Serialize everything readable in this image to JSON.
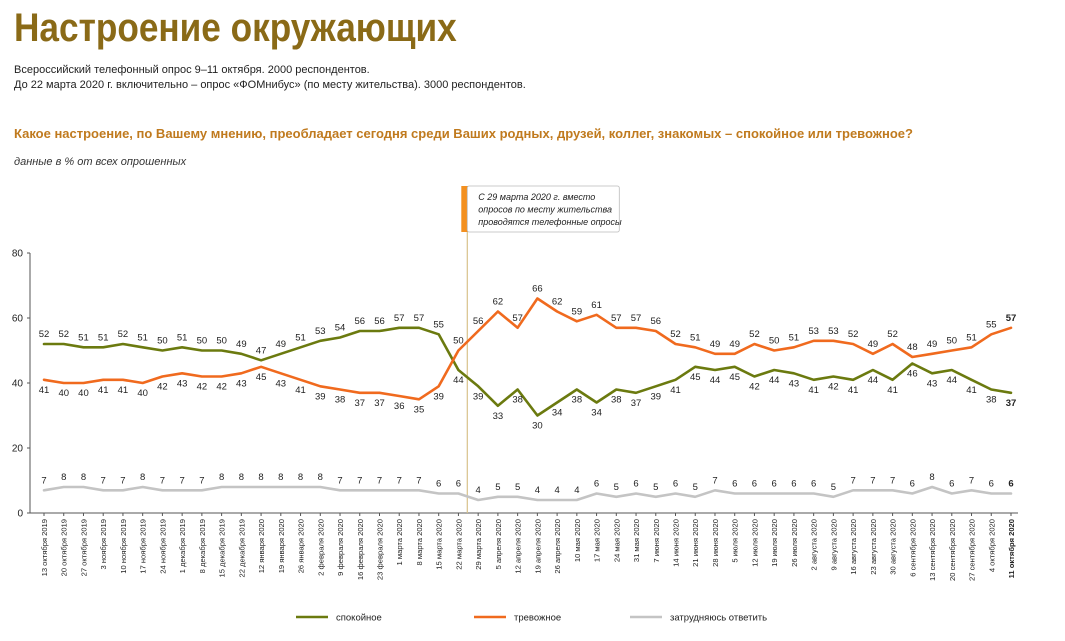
{
  "header": {
    "title": "Настроение окружающих",
    "subtitle_1": "Всероссийский телефонный опрос 9–11 октября. 2000 респондентов.",
    "subtitle_2": "До 22 марта 2020 г. включительно – опрос «ФОМнибус» (по месту жительства). 3000 респондентов.",
    "question": "Какое настроение, по Вашему мнению, преобладает сегодня среди Ваших родных, друзей, коллег, знакомых – спокойное или тревожное?",
    "note": "данные в % от всех опрошенных"
  },
  "annotation": {
    "text_lines": [
      "С 29 марта 2020 г. вместо",
      "опросов по месту жительства",
      "проводятся телефонные опросы"
    ],
    "after_category": "22 марта 2020",
    "accent_color": "#f39020"
  },
  "chart_data": {
    "type": "line",
    "ylim": [
      0,
      80
    ],
    "yticks": [
      "0",
      "20",
      "40",
      "60",
      "80"
    ],
    "grid": false,
    "legend_position": "bottom",
    "categories": [
      "13 октября 2019",
      "20 октября 2019",
      "27 октября 2019",
      "3 ноября 2019",
      "10 ноября 2019",
      "17 ноября 2019",
      "24 ноября 2019",
      "1 декабря 2019",
      "8 декабря 2019",
      "15 декабря 2019",
      "22 декабря 2019",
      "12 января 2020",
      "19 января 2020",
      "26 января 2020",
      "2 февраля 2020",
      "9 февраля 2020",
      "16 февраля 2020",
      "23 февраля 2020",
      "1 марта 2020",
      "8 марта 2020",
      "15 марта 2020",
      "22 марта 2020",
      "29 марта 2020",
      "5 апреля 2020",
      "12 апреля 2020",
      "19 апреля 2020",
      "26 апреля 2020",
      "10 мая 2020",
      "17 мая 2020",
      "24 мая 2020",
      "31 мая 2020",
      "7 июня 2020",
      "14 июня 2020",
      "21 июня 2020",
      "28 июня 2020",
      "5 июля 2020",
      "12 июля 2020",
      "19 июля 2020",
      "26 июля 2020",
      "2 августа 2020",
      "9 августа 2020",
      "16 августа 2020",
      "23 августа 2020",
      "30 августа 2020",
      "6 сентября 2020",
      "13 сентября 2020",
      "20 сентября 2020",
      "27 сентября 2020",
      "4 октября 2020",
      "11 октября 2020"
    ],
    "series": [
      {
        "name": "спокойное",
        "color": "#6b7a0f",
        "values": [
          52,
          52,
          51,
          51,
          52,
          51,
          50,
          51,
          50,
          50,
          49,
          47,
          49,
          51,
          53,
          54,
          56,
          56,
          57,
          57,
          55,
          44,
          39,
          33,
          38,
          30,
          34,
          38,
          34,
          38,
          37,
          39,
          41,
          45,
          44,
          45,
          42,
          44,
          43,
          41,
          42,
          41,
          44,
          41,
          46,
          43,
          44,
          41,
          38,
          37
        ]
      },
      {
        "name": "тревожное",
        "color": "#f06a1e",
        "values": [
          41,
          40,
          40,
          41,
          41,
          40,
          42,
          43,
          42,
          42,
          43,
          45,
          43,
          41,
          39,
          38,
          37,
          37,
          36,
          35,
          39,
          50,
          56,
          62,
          57,
          66,
          62,
          59,
          61,
          57,
          57,
          56,
          52,
          51,
          49,
          49,
          52,
          50,
          51,
          53,
          53,
          52,
          49,
          52,
          48,
          49,
          50,
          51,
          55,
          57
        ]
      },
      {
        "name": "затрудняюсь ответить",
        "color": "#c4c4c4",
        "values": [
          7,
          8,
          8,
          7,
          7,
          8,
          7,
          7,
          7,
          8,
          8,
          8,
          8,
          8,
          8,
          7,
          7,
          7,
          7,
          7,
          6,
          6,
          4,
          5,
          5,
          4,
          4,
          4,
          6,
          5,
          6,
          5,
          6,
          5,
          7,
          6,
          6,
          6,
          6,
          6,
          5,
          7,
          7,
          7,
          6,
          8,
          6,
          7,
          6,
          6
        ]
      }
    ]
  }
}
